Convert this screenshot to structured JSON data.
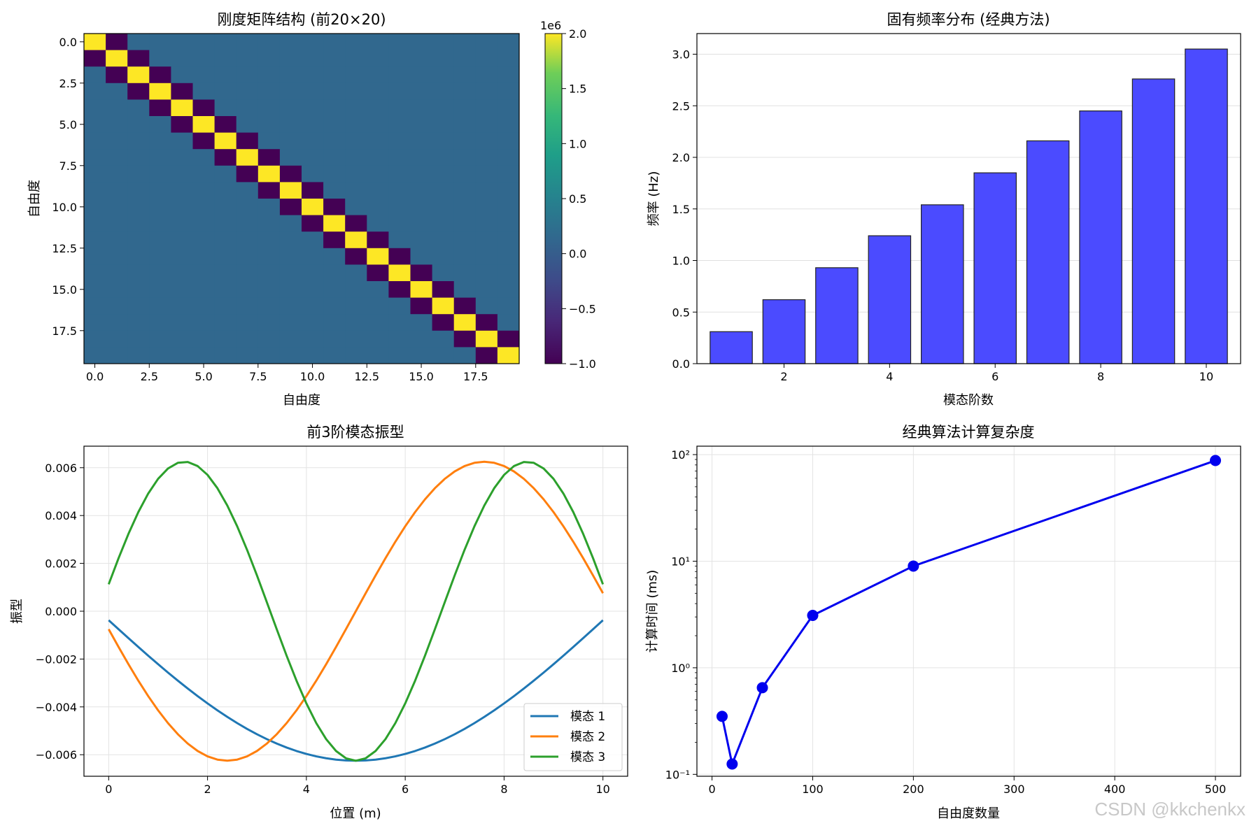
{
  "watermark": "CSDN @kkchenkx",
  "chart_data": [
    {
      "type": "heatmap",
      "title": "刚度矩阵结构 (前20×20)",
      "xlabel": "自由度",
      "ylabel": "自由度",
      "size": 20,
      "matrix_rule": {
        "diagonal": 2000000,
        "off_diagonal": -1000000,
        "elsewhere": 0
      },
      "xticks": [
        0,
        2.5,
        5,
        7.5,
        10,
        12.5,
        15,
        17.5
      ],
      "xtick_labels": [
        "0.0",
        "2.5",
        "5.0",
        "7.5",
        "10.0",
        "12.5",
        "15.0",
        "17.5"
      ],
      "yticks": [
        0,
        2.5,
        5,
        7.5,
        10,
        12.5,
        15,
        17.5
      ],
      "ytick_labels": [
        "0.0",
        "2.5",
        "5.0",
        "7.5",
        "10.0",
        "12.5",
        "15.0",
        "17.5"
      ],
      "colorbar": {
        "range": [
          -1.0,
          2.0
        ],
        "ticks": [
          2.0,
          1.5,
          1.0,
          0.5,
          0.0,
          -0.5,
          -1.0
        ],
        "tick_labels": [
          "2.0",
          "1.5",
          "1.0",
          "0.5",
          "0.0",
          "−0.5",
          "−1.0"
        ],
        "offset_text": "1e6",
        "colormap": "viridis"
      }
    },
    {
      "type": "bar",
      "title": "固有频率分布 (经典方法)",
      "xlabel": "模态阶数",
      "ylabel": "频率 (Hz)",
      "categories": [
        1,
        2,
        3,
        4,
        5,
        6,
        7,
        8,
        9,
        10
      ],
      "values": [
        0.31,
        0.62,
        0.93,
        1.24,
        1.54,
        1.85,
        2.16,
        2.45,
        2.76,
        3.05
      ],
      "ylim": [
        0,
        3.2
      ],
      "xlim": [
        0.35,
        10.65
      ],
      "xticks": [
        2,
        4,
        6,
        8,
        10
      ],
      "xtick_labels": [
        "2",
        "4",
        "6",
        "8",
        "10"
      ],
      "yticks": [
        0,
        0.5,
        1.0,
        1.5,
        2.0,
        2.5,
        3.0
      ],
      "ytick_labels": [
        "0.0",
        "0.5",
        "1.0",
        "1.5",
        "2.0",
        "2.5",
        "3.0"
      ],
      "bar_color": "#4b4bff",
      "grid": "y"
    },
    {
      "type": "line",
      "title": "前3阶模态振型",
      "xlabel": "位置 (m)",
      "ylabel": "振型",
      "x_range": [
        0,
        10
      ],
      "xlim": [
        -0.5,
        10.5
      ],
      "ylim": [
        -0.0069,
        0.0069
      ],
      "amplitude": 0.00625,
      "xticks": [
        0,
        2,
        4,
        6,
        8,
        10
      ],
      "xtick_labels": [
        "0",
        "2",
        "4",
        "6",
        "8",
        "10"
      ],
      "yticks": [
        0.006,
        0.004,
        0.002,
        0.0,
        -0.002,
        -0.004,
        -0.006
      ],
      "ytick_labels": [
        "0.006",
        "0.004",
        "0.002",
        "0.000",
        "−0.002",
        "−0.004",
        "−0.006"
      ],
      "grid": true,
      "legend_position": "lower-right",
      "series": [
        {
          "name": "模态 1",
          "color": "#1f77b4",
          "mode": 1,
          "sign": -1
        },
        {
          "name": "模态 2",
          "color": "#ff7f0e",
          "mode": 2,
          "sign": -1
        },
        {
          "name": "模态 3",
          "color": "#2ca02c",
          "mode": 3,
          "sign": 1
        }
      ]
    },
    {
      "type": "line",
      "title": "经典算法计算复杂度",
      "xlabel": "自由度数量",
      "ylabel": "计算时间 (ms)",
      "yscale": "log",
      "x": [
        10,
        20,
        50,
        100,
        200,
        500
      ],
      "y": [
        0.35,
        0.125,
        0.65,
        3.1,
        9.0,
        88
      ],
      "xlim": [
        -15,
        525
      ],
      "ylim": [
        0.096,
        120
      ],
      "xticks": [
        0,
        100,
        200,
        300,
        400,
        500
      ],
      "xtick_labels": [
        "0",
        "100",
        "200",
        "300",
        "400",
        "500"
      ],
      "yticks": [
        0.1,
        1,
        10,
        100
      ],
      "ytick_labels": [
        "10⁻¹",
        "10⁰",
        "10¹",
        "10²"
      ],
      "color": "#0000ee",
      "marker": "circle",
      "grid": true
    }
  ]
}
